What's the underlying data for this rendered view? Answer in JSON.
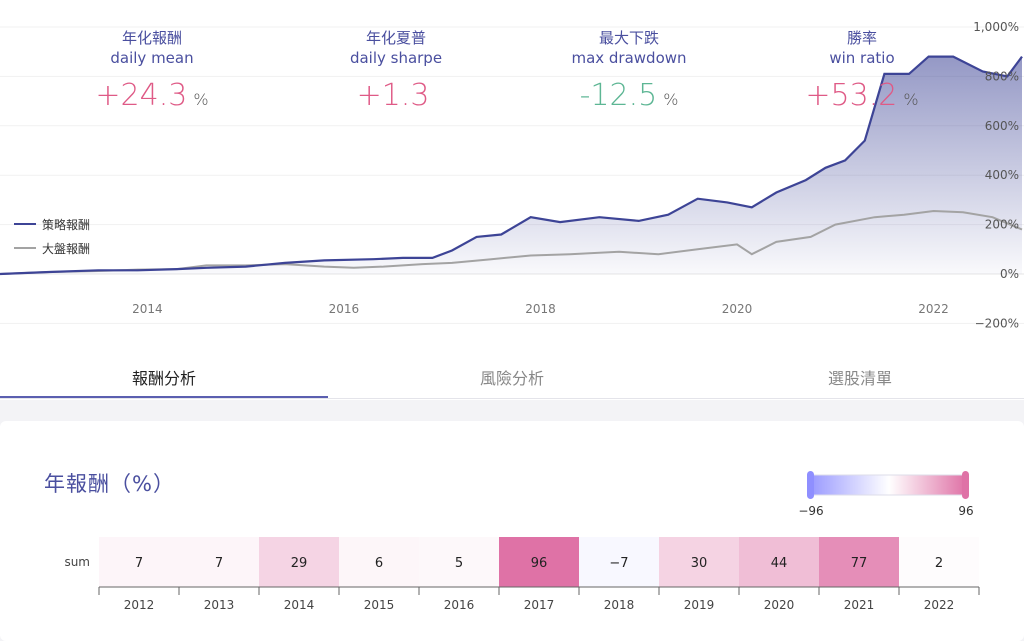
{
  "stats": [
    {
      "title_zh": "年化報酬",
      "title_en": "daily mean",
      "value": "+24.3",
      "unit": "%"
    },
    {
      "title_zh": "年化夏普",
      "title_en": "daily sharpe",
      "value": "+1.3",
      "unit": ""
    },
    {
      "title_zh": "最大下跌",
      "title_en": "max drawdown",
      "value": "-12.5",
      "unit": "%"
    },
    {
      "title_zh": "勝率",
      "title_en": "win ratio",
      "value": "+53.2",
      "unit": "%"
    }
  ],
  "tabs": [
    "報酬分析",
    "風險分析",
    "選股清單"
  ],
  "annual": {
    "title": "年報酬（%）",
    "row_label": "sum",
    "scale_min": "−96",
    "scale_max": "96"
  },
  "colors": {
    "strategy": "#3d4496",
    "benchmark": "#a3a3a3",
    "positive": "#df5a86",
    "negative": "#5db694"
  },
  "chart_data": [
    {
      "type": "line",
      "title": "",
      "x_ticks": [
        "2014",
        "2016",
        "2018",
        "2020",
        "2022"
      ],
      "y_ticks": [
        "1,000%",
        "800%",
        "600%",
        "400%",
        "200%",
        "0%",
        "−200%"
      ],
      "ylim": [
        -200,
        1000
      ],
      "xlim": [
        2012.5,
        2022.9
      ],
      "legend_position": "left-middle",
      "series": [
        {
          "name": "策略報酬",
          "points": [
            [
              2012.5,
              0
            ],
            [
              2013.0,
              8
            ],
            [
              2013.5,
              15
            ],
            [
              2013.9,
              15
            ],
            [
              2014.3,
              20
            ],
            [
              2014.6,
              25
            ],
            [
              2015.0,
              30
            ],
            [
              2015.4,
              45
            ],
            [
              2015.8,
              55
            ],
            [
              2016.3,
              60
            ],
            [
              2016.6,
              65
            ],
            [
              2016.9,
              65
            ],
            [
              2017.1,
              95
            ],
            [
              2017.35,
              150
            ],
            [
              2017.6,
              160
            ],
            [
              2017.9,
              230
            ],
            [
              2018.2,
              210
            ],
            [
              2018.6,
              230
            ],
            [
              2019.0,
              215
            ],
            [
              2019.3,
              240
            ],
            [
              2019.6,
              305
            ],
            [
              2019.9,
              290
            ],
            [
              2020.15,
              270
            ],
            [
              2020.4,
              330
            ],
            [
              2020.7,
              380
            ],
            [
              2020.9,
              430
            ],
            [
              2021.1,
              460
            ],
            [
              2021.3,
              540
            ],
            [
              2021.5,
              810
            ],
            [
              2021.75,
              810
            ],
            [
              2021.95,
              880
            ],
            [
              2022.2,
              880
            ],
            [
              2022.5,
              820
            ],
            [
              2022.75,
              800
            ],
            [
              2022.9,
              880
            ]
          ]
        },
        {
          "name": "大盤報酬",
          "points": [
            [
              2012.5,
              0
            ],
            [
              2013.0,
              8
            ],
            [
              2013.5,
              12
            ],
            [
              2013.9,
              18
            ],
            [
              2014.3,
              20
            ],
            [
              2014.6,
              35
            ],
            [
              2015.0,
              35
            ],
            [
              2015.4,
              40
            ],
            [
              2015.8,
              30
            ],
            [
              2016.1,
              25
            ],
            [
              2016.4,
              30
            ],
            [
              2016.8,
              40
            ],
            [
              2017.1,
              45
            ],
            [
              2017.5,
              60
            ],
            [
              2017.9,
              75
            ],
            [
              2018.3,
              80
            ],
            [
              2018.8,
              90
            ],
            [
              2019.2,
              80
            ],
            [
              2019.6,
              100
            ],
            [
              2020.0,
              120
            ],
            [
              2020.15,
              80
            ],
            [
              2020.4,
              130
            ],
            [
              2020.75,
              150
            ],
            [
              2021.0,
              200
            ],
            [
              2021.4,
              230
            ],
            [
              2021.7,
              240
            ],
            [
              2022.0,
              255
            ],
            [
              2022.3,
              250
            ],
            [
              2022.6,
              230
            ],
            [
              2022.9,
              180
            ]
          ]
        }
      ]
    },
    {
      "type": "heatmap",
      "title": "年報酬（%）",
      "row_label": "sum",
      "categories": [
        "2012",
        "2013",
        "2014",
        "2015",
        "2016",
        "2017",
        "2018",
        "2019",
        "2020",
        "2021",
        "2022"
      ],
      "values": [
        7,
        7,
        29,
        6,
        5,
        96,
        -7,
        30,
        44,
        77,
        2
      ],
      "scale_range": [
        -96,
        96
      ]
    }
  ]
}
